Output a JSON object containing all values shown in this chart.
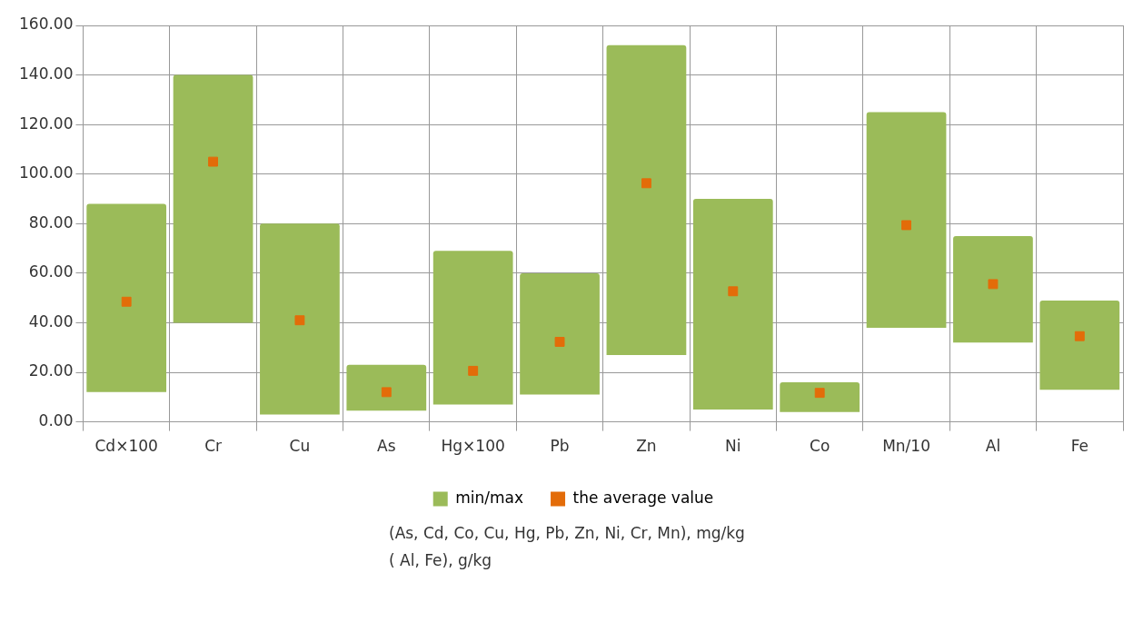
{
  "chart_data": {
    "type": "bar",
    "categories": [
      "Cd×100",
      "Cr",
      "Cu",
      "As",
      "Hg×100",
      "Pb",
      "Zn",
      "Ni",
      "Co",
      "Mn/10",
      "Al",
      "Fe"
    ],
    "series": [
      {
        "name": "min/max",
        "color": "#9bbb59",
        "base": [
          12,
          40,
          3,
          4.5,
          7,
          11,
          27,
          5,
          4,
          38,
          32,
          13
        ],
        "values": [
          76,
          100,
          77,
          18.5,
          62,
          49,
          125,
          85,
          12,
          87,
          43,
          36
        ]
      },
      {
        "name": "the average value",
        "type": "scatter",
        "color": "#e36c09",
        "marker": "square",
        "x": [
          "Cd×100",
          "Cr",
          "Cu",
          "As",
          "Hg×100",
          "Pb",
          "Zn",
          "Ni",
          "Co",
          "Mn/10",
          "Al",
          "Fe"
        ],
        "values": [
          48.5,
          105,
          41,
          12,
          20.6,
          32.3,
          96.3,
          52.7,
          11.7,
          79.4,
          55.6,
          34.6
        ]
      }
    ],
    "ylim": [
      0,
      160
    ],
    "yticks": [
      {
        "value": 0,
        "label": "0.00"
      },
      {
        "value": 20,
        "label": "20.00"
      },
      {
        "value": 40,
        "label": "40.00"
      },
      {
        "value": 60,
        "label": "60.00"
      },
      {
        "value": 80,
        "label": "80.00"
      },
      {
        "value": 100,
        "label": "100.00"
      },
      {
        "value": 120,
        "label": "120.00"
      },
      {
        "value": 140,
        "label": "140.00"
      },
      {
        "value": 160,
        "label": "160.00"
      }
    ],
    "grid": true,
    "legend": "bottom",
    "annotations": [
      "(As, Cd, Co, Cu, Hg, Pb, Zn, Ni, Cr, Mn), mg/kg",
      "( Al, Fe), g/kg"
    ]
  }
}
